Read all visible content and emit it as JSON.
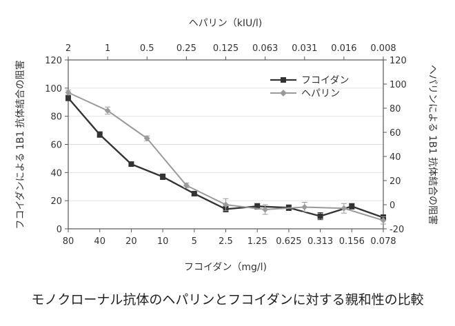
{
  "chart_data": {
    "type": "line",
    "x_bottom_label": "フコイダン（mg/l)",
    "x_top_label": "ヘパリン（kIU/l)",
    "y_left_label": "フコイダンによる 1B1 抗体結合の阻害",
    "y_right_label": "ヘパリンによる 1B1 抗体結合の阻害",
    "x_bottom_ticks": [
      "80",
      "40",
      "20",
      "10",
      "5",
      "2.5",
      "1.25",
      "0.625",
      "0.313",
      "0.156",
      "0.078"
    ],
    "x_top_ticks": [
      "2",
      "1",
      "0.5",
      "0.25",
      "0.125",
      "0.063",
      "0.031",
      "0.016",
      "0.008"
    ],
    "y_left_ticks": [
      0,
      20,
      40,
      60,
      80,
      100,
      120
    ],
    "y_left_range": [
      0,
      120
    ],
    "y_right_ticks": [
      -20,
      0,
      20,
      40,
      60,
      80,
      100,
      120
    ],
    "y_right_range": [
      -20,
      120
    ],
    "legend_position": "top-right",
    "series": [
      {
        "name": "フコイダン",
        "color": "#333333",
        "marker": "square",
        "axis": "left",
        "x": [
          "80",
          "40",
          "20",
          "10",
          "5",
          "2.5",
          "1.25",
          "0.625",
          "0.313",
          "0.156",
          "0.078"
        ],
        "values": [
          93,
          67,
          46,
          37,
          25,
          14,
          16,
          15,
          9,
          16,
          8
        ],
        "errors": [
          2,
          2,
          1.5,
          2,
          1.5,
          2,
          2,
          2,
          2.5,
          2,
          2
        ]
      },
      {
        "name": "ヘパリン",
        "color": "#9a9a9a",
        "marker": "diamond",
        "axis": "right",
        "x": [
          "2",
          "1",
          "0.5",
          "0.25",
          "0.125",
          "0.063",
          "0.031",
          "0.016",
          "0.008"
        ],
        "values": [
          93,
          78,
          55,
          16,
          0,
          -4,
          -2,
          -3,
          -13
        ],
        "errors": [
          2,
          3,
          2,
          2,
          5,
          4,
          4,
          4,
          3
        ]
      }
    ]
  },
  "caption": "モノクローナル抗体のヘパリンとフコイダンに対する親和性の比較"
}
